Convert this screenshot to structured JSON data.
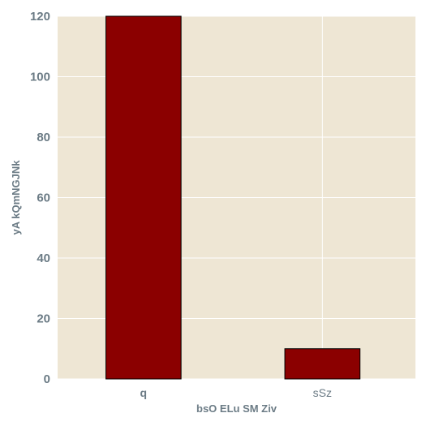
{
  "chart_data": {
    "type": "bar",
    "title": "",
    "xlabel": "bsO ELu SM Ziv",
    "ylabel": "yA kQmNGJNk",
    "categories": [
      "q",
      "sSz"
    ],
    "category_bold": [
      true,
      false
    ],
    "values": [
      120,
      10
    ],
    "ylim": [
      0,
      120
    ],
    "yticks": [
      0,
      20,
      40,
      60,
      80,
      100,
      120
    ],
    "grid": true,
    "colors": {
      "background": "#eee6d4",
      "grid": "#ffffff",
      "bar": "#8b0000",
      "bar_edge": "#000000",
      "text": "#6b7b85"
    }
  }
}
